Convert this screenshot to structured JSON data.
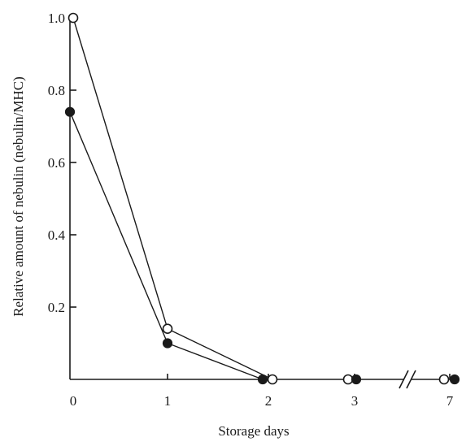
{
  "chart_data": {
    "type": "line",
    "xlabel": "Storage days",
    "ylabel": "Relative amount of nebulin (nebulin/MHC)",
    "x_ticks": [
      "0",
      "1",
      "2",
      "3",
      "7"
    ],
    "y_ticks": [
      "0.2",
      "0.4",
      "0.6",
      "0.8",
      "1.0"
    ],
    "ylim": [
      0,
      1.0
    ],
    "axis_break_between": [
      "3",
      "7"
    ],
    "grid": false,
    "legend": "none",
    "series": [
      {
        "marker": "open-circle",
        "x": [
          "0",
          "1",
          "2",
          "3",
          "7"
        ],
        "values": [
          1.0,
          0.14,
          0.0,
          0.0,
          0.0
        ]
      },
      {
        "marker": "filled-circle",
        "x": [
          "0",
          "1",
          "2",
          "3",
          "7"
        ],
        "values": [
          0.74,
          0.1,
          0.0,
          0.0,
          0.0
        ]
      }
    ]
  }
}
